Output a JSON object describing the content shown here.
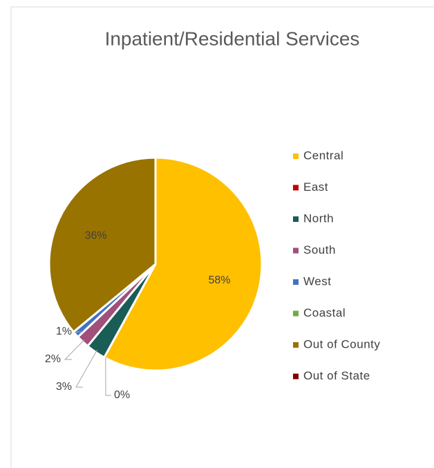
{
  "chart_data": {
    "type": "pie",
    "title": "Inpatient/Residential Services",
    "categories": [
      "Central",
      "East",
      "North",
      "South",
      "West",
      "Coastal",
      "Out of County",
      "Out of State"
    ],
    "values": [
      58,
      0,
      3,
      2,
      1,
      0,
      36,
      0
    ],
    "value_labels": [
      "58%",
      "0%",
      "3%",
      "2%",
      "1%",
      null,
      "36%",
      null
    ],
    "colors": [
      "#ffc000",
      "#c00000",
      "#1a5c56",
      "#a0507a",
      "#4472c4",
      "#70ad47",
      "#997300",
      "#7f0000"
    ],
    "legend": "right"
  }
}
